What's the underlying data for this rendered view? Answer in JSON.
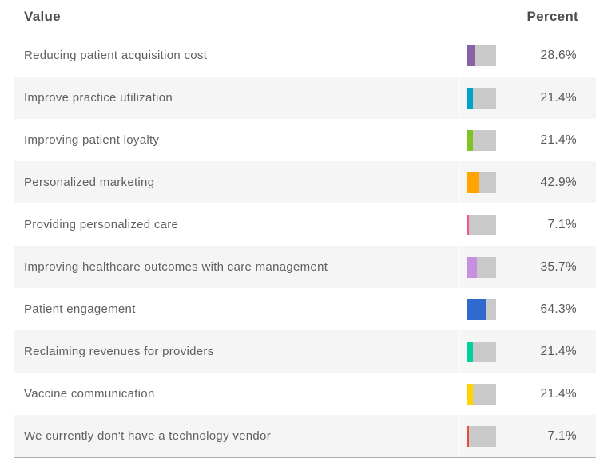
{
  "table": {
    "columns": {
      "value": "Value",
      "percent": "Percent"
    },
    "rows": [
      {
        "label": "Reducing patient acquisition cost",
        "percent_text": "28.6%",
        "percent_value": 28.6,
        "bar_color": "#8763a6"
      },
      {
        "label": "Improve practice utilization",
        "percent_text": "21.4%",
        "percent_value": 21.4,
        "bar_color": "#00a3c6"
      },
      {
        "label": "Improving patient loyalty",
        "percent_text": "21.4%",
        "percent_value": 21.4,
        "bar_color": "#7ec422"
      },
      {
        "label": "Personalized marketing",
        "percent_text": "42.9%",
        "percent_value": 42.9,
        "bar_color": "#ffa400"
      },
      {
        "label": "Providing personalized care",
        "percent_text": "7.1%",
        "percent_value": 7.1,
        "bar_color": "#f9557e"
      },
      {
        "label": "Improving healthcare outcomes with care management",
        "percent_text": "35.7%",
        "percent_value": 35.7,
        "bar_color": "#c88fdf"
      },
      {
        "label": "Patient engagement",
        "percent_text": "64.3%",
        "percent_value": 64.3,
        "bar_color": "#3169cf"
      },
      {
        "label": "Reclaiming revenues for providers",
        "percent_text": "21.4%",
        "percent_value": 21.4,
        "bar_color": "#00d09a"
      },
      {
        "label": "Vaccine communication",
        "percent_text": "21.4%",
        "percent_value": 21.4,
        "bar_color": "#ffd400"
      },
      {
        "label": "We currently don't have a technology vendor",
        "percent_text": "7.1%",
        "percent_value": 7.1,
        "bar_color": "#e74c3f"
      }
    ],
    "style": {
      "bar_track_color": "#c9c9c9",
      "alt_row_color": "#f5f5f5",
      "header_text_color": "#4d4d4d",
      "body_text_color": "#606060"
    }
  },
  "chart_data": {
    "type": "table",
    "title": "",
    "columns": [
      "Value",
      "Percent"
    ],
    "categories": [
      "Reducing patient acquisition cost",
      "Improve practice utilization",
      "Improving patient loyalty",
      "Personalized marketing",
      "Providing personalized care",
      "Improving healthcare outcomes with care management",
      "Patient engagement",
      "Reclaiming revenues for providers",
      "Vaccine communication",
      "We currently don't have a technology vendor"
    ],
    "values": [
      28.6,
      21.4,
      21.4,
      42.9,
      7.1,
      35.7,
      64.3,
      21.4,
      21.4,
      7.1
    ],
    "bar_colors": [
      "#8763a6",
      "#00a3c6",
      "#7ec422",
      "#ffa400",
      "#f9557e",
      "#c88fdf",
      "#3169cf",
      "#00d09a",
      "#ffd400",
      "#e74c3f"
    ],
    "xlabel": "",
    "ylabel": "Percent",
    "value_range": [
      0,
      100
    ],
    "legend": "none",
    "grid": false
  }
}
